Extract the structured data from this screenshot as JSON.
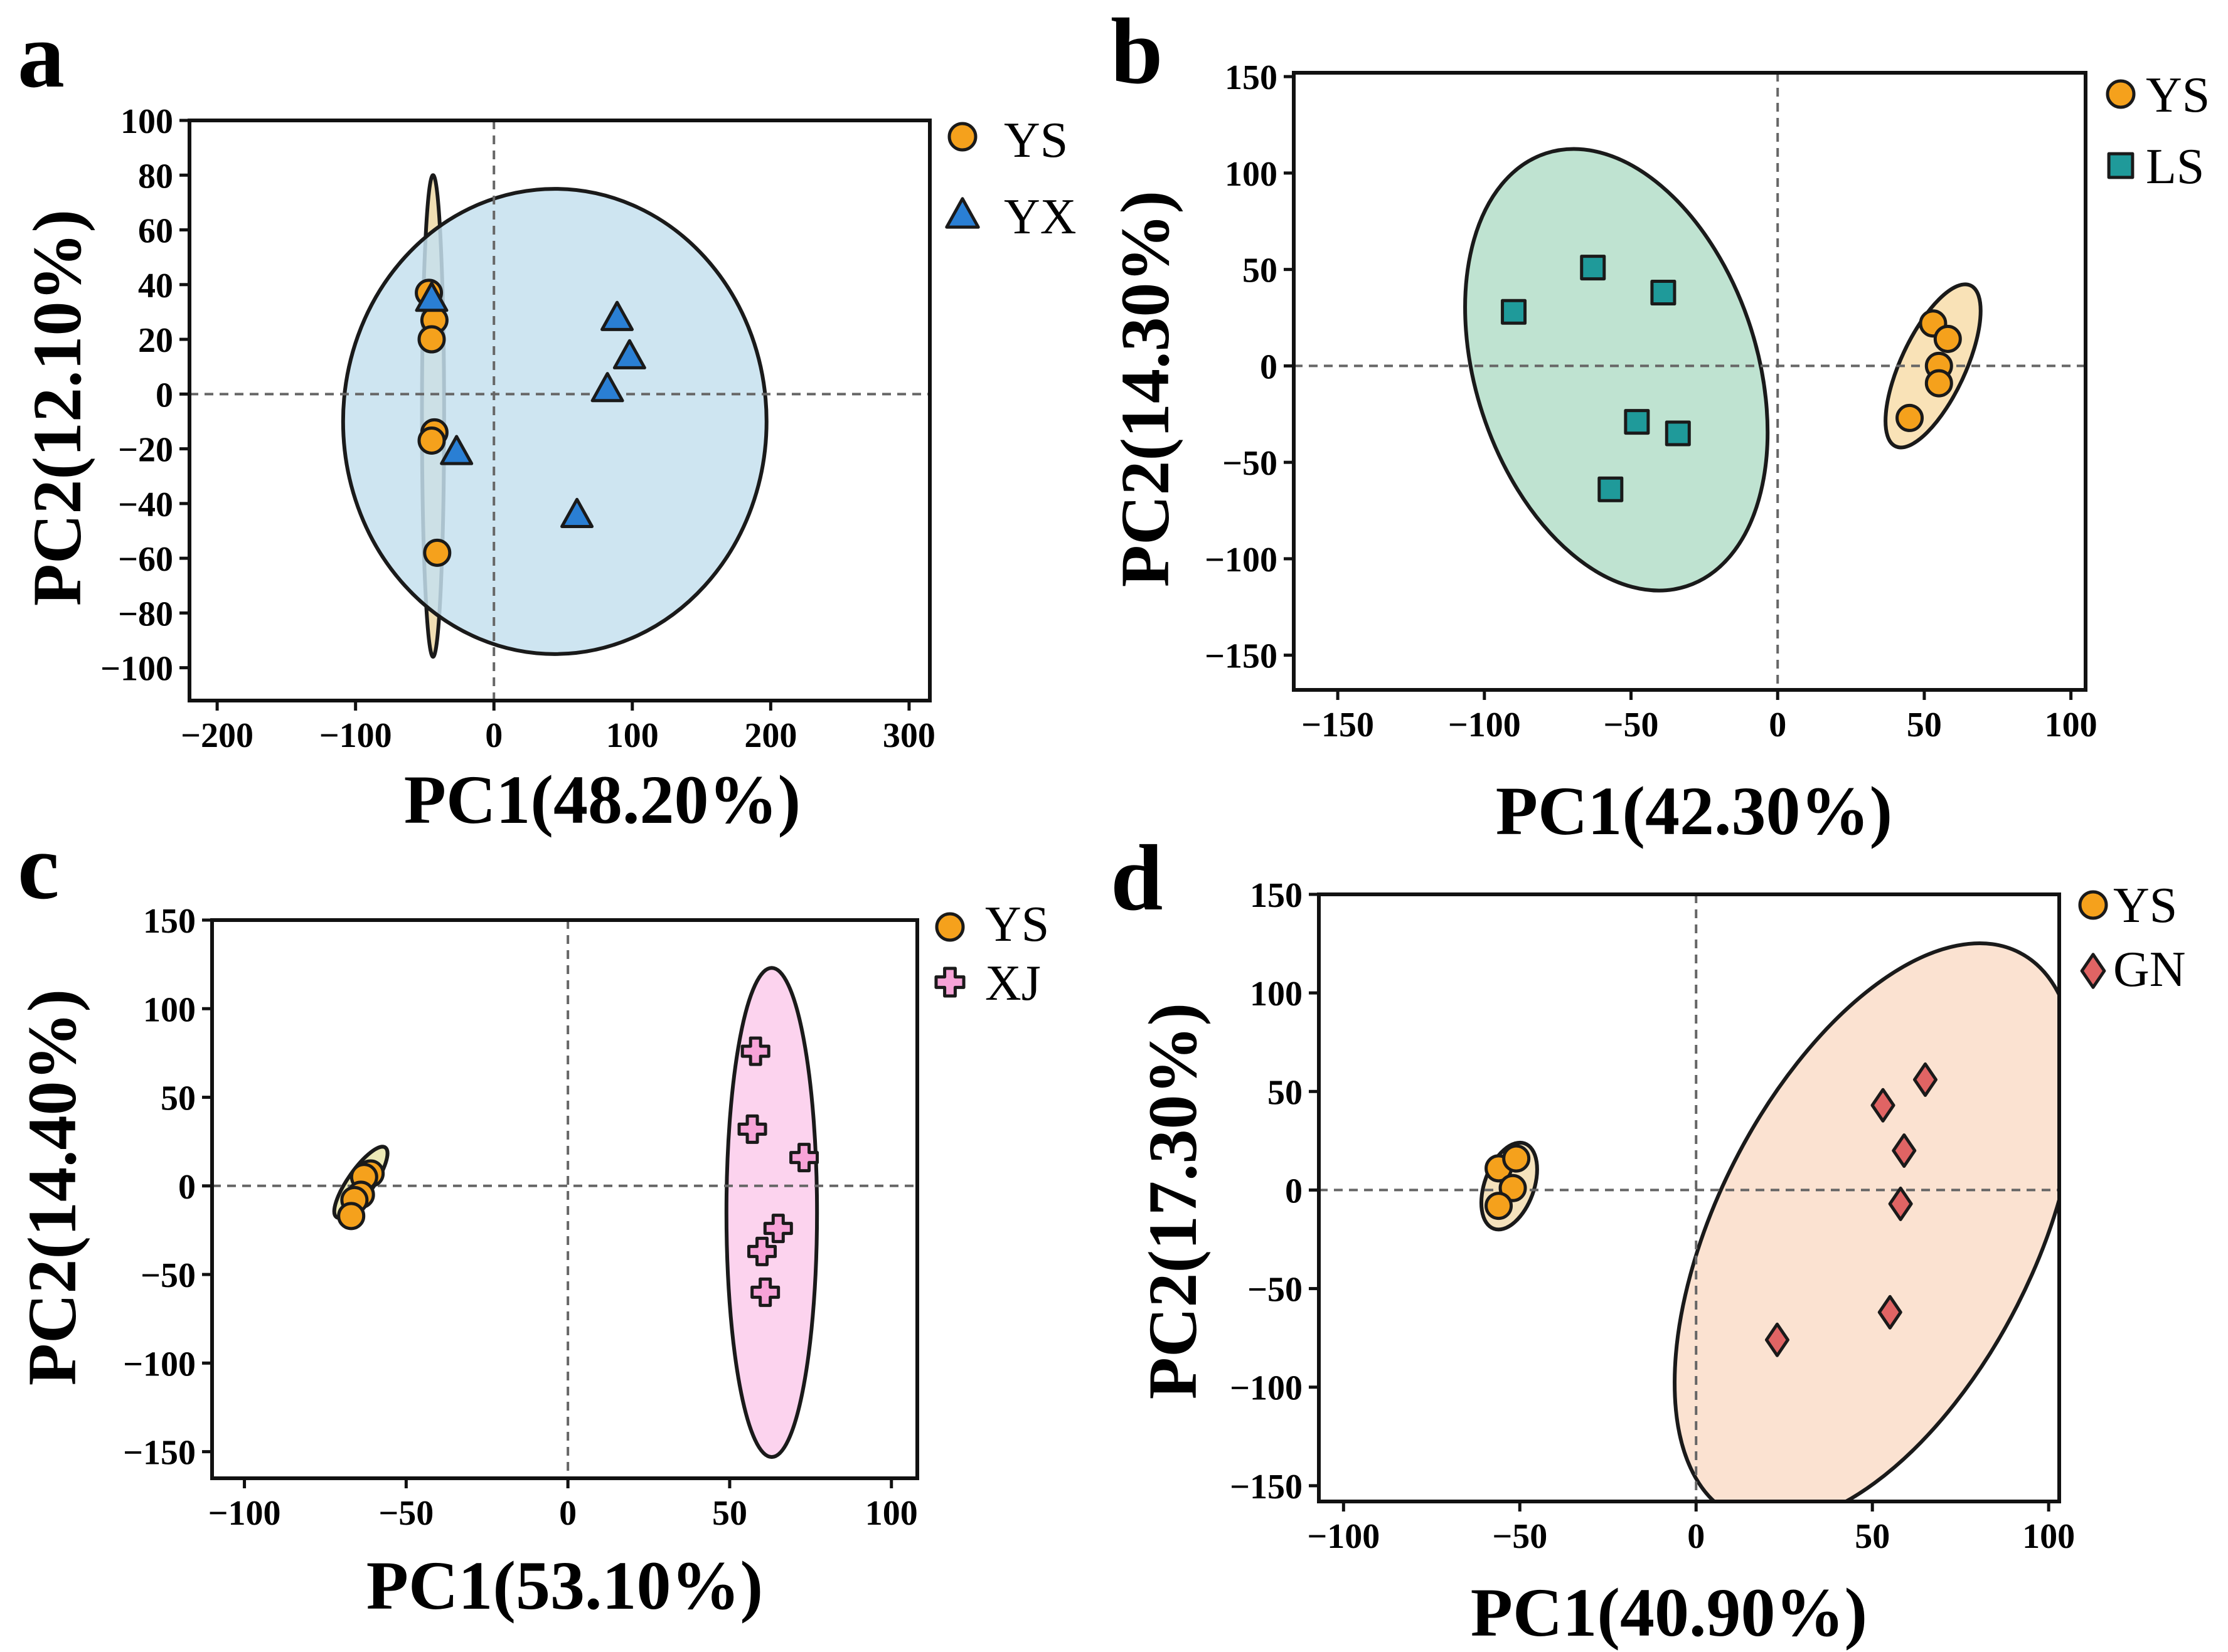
{
  "chart_data": [
    {
      "panel": "a",
      "type": "scatter",
      "subtype": "PCA with confidence ellipses",
      "xlabel": "PC1(48.20%)",
      "ylabel": "PC2(12.10%)",
      "xlim": [
        -220,
        315
      ],
      "ylim": [
        -112,
        100
      ],
      "xticks": [
        -200,
        -100,
        0,
        100,
        200,
        300
      ],
      "xtick_labels": [
        "−200",
        "−100",
        "0",
        "100",
        "200",
        "300"
      ],
      "yticks": [
        100,
        80,
        60,
        40,
        20,
        0,
        -20,
        -40,
        -60,
        -80,
        -100
      ],
      "ytick_labels": [
        "100",
        "80",
        "60",
        "40",
        "20",
        "0",
        "−20",
        "−40",
        "−60",
        "−80",
        "−100"
      ],
      "reference_lines": {
        "x": 0,
        "y": 0
      },
      "series": [
        {
          "name": "YS",
          "marker": "circle",
          "color": "#f5a11c",
          "points": [
            [
              -47,
              37
            ],
            [
              -43,
              27
            ],
            [
              -45,
              20
            ],
            [
              -43,
              -14
            ],
            [
              -45,
              -17
            ],
            [
              -41,
              -58
            ]
          ],
          "ellipse": {
            "center": [
              -44,
              -8
            ],
            "rx": 8,
            "ry": 88,
            "angle": 0,
            "fill": "#f0deb3",
            "fill_opacity": 1
          }
        },
        {
          "name": "YX",
          "marker": "triangle",
          "color": "#2a7fd4",
          "points": [
            [
              -45,
              35
            ],
            [
              -27,
              -21
            ],
            [
              89,
              28
            ],
            [
              98,
              14
            ],
            [
              82,
              2
            ],
            [
              60,
              -44
            ]
          ],
          "ellipse": {
            "center": [
              44,
              -10
            ],
            "rx": 153,
            "ry": 85,
            "angle": 0,
            "fill": "#c6e0ef",
            "fill_opacity": 0.85
          }
        }
      ],
      "legend": [
        "YS",
        "YX"
      ],
      "legend_position": "outside-right-top"
    },
    {
      "panel": "b",
      "type": "scatter",
      "subtype": "PCA with confidence ellipses",
      "xlabel": "PC1(42.30%)",
      "ylabel": "PC2(14.30%)",
      "xlim": [
        -165,
        105
      ],
      "ylim": [
        -168,
        152
      ],
      "xticks": [
        -150,
        -100,
        -50,
        0,
        50,
        100
      ],
      "xtick_labels": [
        "−150",
        "−100",
        "−50",
        "0",
        "50",
        "100"
      ],
      "yticks": [
        150,
        100,
        50,
        0,
        -50,
        -100,
        -150
      ],
      "ytick_labels": [
        "150",
        "100",
        "50",
        "0",
        "−50",
        "−100",
        "−150"
      ],
      "reference_lines": {
        "x": 0,
        "y": 0
      },
      "series": [
        {
          "name": "YS",
          "marker": "circle",
          "color": "#f5a11c",
          "points": [
            [
              53,
              22
            ],
            [
              58,
              14
            ],
            [
              55,
              0
            ],
            [
              55,
              -9
            ],
            [
              45,
              -27
            ]
          ],
          "ellipse": {
            "center": [
              53,
              0
            ],
            "rx": 11,
            "ry": 46,
            "angle": 25,
            "fill": "#f8dfaf",
            "fill_opacity": 0.9
          }
        },
        {
          "name": "LS",
          "marker": "square",
          "color": "#1f9a9a",
          "points": [
            [
              -63,
              51
            ],
            [
              -90,
              28
            ],
            [
              -39,
              38
            ],
            [
              -48,
              -29
            ],
            [
              -34,
              -35
            ],
            [
              -57,
              -64
            ]
          ],
          "ellipse": {
            "center": [
              -55,
              -2
            ],
            "rx": 48,
            "ry": 118,
            "angle": -18,
            "fill": "#bfe3d1",
            "fill_opacity": 1
          }
        }
      ],
      "legend": [
        "YS",
        "LS"
      ],
      "legend_position": "outside-right-top"
    },
    {
      "panel": "c",
      "type": "scatter",
      "subtype": "PCA with confidence ellipses",
      "xlabel": "PC1(53.10%)",
      "ylabel": "PC2(14.40%)",
      "xlim": [
        -110,
        108
      ],
      "ylim": [
        -165,
        150
      ],
      "xticks": [
        -100,
        -50,
        0,
        50,
        100
      ],
      "xtick_labels": [
        "−100",
        "−50",
        "0",
        "50",
        "100"
      ],
      "yticks": [
        150,
        100,
        50,
        0,
        -50,
        -100,
        -150
      ],
      "ytick_labels": [
        "150",
        "100",
        "50",
        "0",
        "−50",
        "−100",
        "−150"
      ],
      "reference_lines": {
        "x": 0,
        "y": 0
      },
      "series": [
        {
          "name": "YS",
          "marker": "circle",
          "color": "#f5a11c",
          "points": [
            [
              -61,
              7
            ],
            [
              -63,
              5
            ],
            [
              -64,
              -5
            ],
            [
              -66,
              -8
            ],
            [
              -67,
              -17
            ]
          ],
          "ellipse": {
            "center": [
              -64,
              2
            ],
            "rx": 4,
            "ry": 24,
            "angle": 35,
            "fill": "#ece9b6",
            "fill_opacity": 1
          }
        },
        {
          "name": "XJ",
          "marker": "cross",
          "color": "#f7a3d8",
          "points": [
            [
              58,
              76
            ],
            [
              57,
              32
            ],
            [
              73,
              16
            ],
            [
              65,
              -24
            ],
            [
              60,
              -37
            ],
            [
              61,
              -60
            ]
          ],
          "ellipse": {
            "center": [
              63,
              -15
            ],
            "rx": 14,
            "ry": 138,
            "angle": 0,
            "fill": "#fcd3ee",
            "fill_opacity": 1
          }
        }
      ],
      "legend": [
        "YS",
        "XJ"
      ],
      "legend_position": "outside-right-top"
    },
    {
      "panel": "d",
      "type": "scatter",
      "subtype": "PCA with confidence ellipses",
      "xlabel": "PC1(40.90%)",
      "ylabel": "PC2(17.30%)",
      "xlim": [
        -107,
        103
      ],
      "ylim": [
        -158,
        150
      ],
      "xticks": [
        -100,
        -50,
        0,
        50,
        100
      ],
      "xtick_labels": [
        "−100",
        "−50",
        "0",
        "50",
        "100"
      ],
      "yticks": [
        150,
        100,
        50,
        0,
        -50,
        -100,
        -150
      ],
      "ytick_labels": [
        "150",
        "100",
        "50",
        "0",
        "−50",
        "−100",
        "−150"
      ],
      "reference_lines": {
        "x": 0,
        "y": 0
      },
      "series": [
        {
          "name": "YS",
          "marker": "circle",
          "color": "#f5a11c",
          "points": [
            [
              -56,
              11
            ],
            [
              -51,
              16
            ],
            [
              -52,
              1
            ],
            [
              -56,
              -8
            ]
          ],
          "ellipse": {
            "center": [
              -53,
              2
            ],
            "rx": 7,
            "ry": 23,
            "angle": 20,
            "fill": "#f4dfb5",
            "fill_opacity": 0.9
          }
        },
        {
          "name": "GN",
          "marker": "diamond",
          "color": "#e06464",
          "points": [
            [
              65,
              56
            ],
            [
              53,
              43
            ],
            [
              59,
              20
            ],
            [
              58,
              -7
            ],
            [
              55,
              -62
            ],
            [
              23,
              -76
            ]
          ],
          "ellipse": {
            "center": [
              51,
              -22
            ],
            "rx": 45,
            "ry": 160,
            "angle": 27,
            "fill": "#fbe2d1",
            "fill_opacity": 1
          }
        }
      ],
      "legend": [
        "YS",
        "GN"
      ],
      "legend_position": "outside-right-top"
    }
  ]
}
